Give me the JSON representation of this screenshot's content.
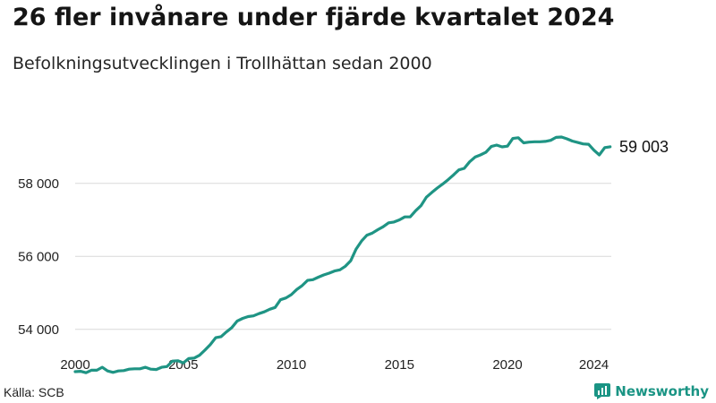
{
  "title": "26 fler invånare under fjärde kvartalet 2024",
  "subtitle": "Befolkningsutvecklingen i Trollhättan sedan 2000",
  "source": "Källa: SCB",
  "brand": {
    "name": "Newsworthy",
    "color": "#1a9484"
  },
  "chart_data": {
    "type": "line",
    "title": "26 fler invånare under fjärde kvartalet 2024",
    "subtitle": "Befolkningsutvecklingen i Trollhättan sedan 2000",
    "xlabel": "",
    "ylabel": "",
    "xlim": [
      2000,
      2024.75
    ],
    "ylim": [
      52700,
      59500
    ],
    "x_ticks": [
      2000,
      2005,
      2010,
      2015,
      2020,
      2024
    ],
    "x_tick_labels": [
      "2000",
      "2005",
      "2010",
      "2015",
      "2020",
      "2024"
    ],
    "y_ticks": [
      54000,
      56000,
      58000
    ],
    "y_tick_labels": [
      "54 000",
      "56 000",
      "58 000"
    ],
    "grid": "horizontal",
    "line_color": "#1f9484",
    "end_label": "59 003",
    "series": [
      {
        "x": [
          2000.0,
          2000.25,
          2000.5,
          2000.75,
          2001.0,
          2001.25,
          2001.5,
          2001.75,
          2002.0,
          2002.25,
          2002.5,
          2002.75,
          2003.0,
          2003.25,
          2003.5,
          2003.75,
          2004.0,
          2004.25,
          2004.5,
          2004.75,
          2005.0,
          2005.25,
          2005.5,
          2005.75,
          2006.0,
          2006.25,
          2006.5,
          2006.75,
          2007.0,
          2007.25,
          2007.5,
          2007.75,
          2008.0,
          2008.25,
          2008.5,
          2008.75,
          2009.0,
          2009.25,
          2009.5,
          2009.75,
          2010.0,
          2010.25,
          2010.5,
          2010.75,
          2011.0,
          2011.25,
          2011.5,
          2011.75,
          2012.0,
          2012.25,
          2012.5,
          2012.75,
          2013.0,
          2013.25,
          2013.5,
          2013.75,
          2014.0,
          2014.25,
          2014.5,
          2014.75,
          2015.0,
          2015.25,
          2015.5,
          2015.75,
          2016.0,
          2016.25,
          2016.5,
          2016.75,
          2017.0,
          2017.25,
          2017.5,
          2017.75,
          2018.0,
          2018.25,
          2018.5,
          2018.75,
          2019.0,
          2019.25,
          2019.5,
          2019.75,
          2020.0,
          2020.25,
          2020.5,
          2020.75,
          2021.0,
          2021.25,
          2021.5,
          2021.75,
          2022.0,
          2022.25,
          2022.5,
          2022.75,
          2023.0,
          2023.25,
          2023.5,
          2023.75,
          2024.0,
          2024.25,
          2024.5,
          2024.75
        ],
        "values": [
          52840,
          52850,
          52810,
          52880,
          52880,
          52960,
          52860,
          52820,
          52860,
          52870,
          52910,
          52920,
          52920,
          52960,
          52910,
          52900,
          52960,
          52980,
          53130,
          53140,
          53080,
          53200,
          53210,
          53290,
          53430,
          53580,
          53770,
          53800,
          53930,
          54050,
          54230,
          54300,
          54350,
          54370,
          54430,
          54480,
          54550,
          54600,
          54810,
          54860,
          54950,
          55090,
          55200,
          55340,
          55360,
          55430,
          55490,
          55540,
          55600,
          55630,
          55730,
          55880,
          56200,
          56420,
          56580,
          56640,
          56730,
          56810,
          56920,
          56940,
          57000,
          57080,
          57080,
          57250,
          57390,
          57620,
          57750,
          57870,
          57980,
          58100,
          58230,
          58370,
          58410,
          58590,
          58720,
          58780,
          58850,
          59010,
          59050,
          59000,
          59020,
          59230,
          59250,
          59110,
          59130,
          59140,
          59140,
          59150,
          59180,
          59260,
          59270,
          59220,
          59160,
          59120,
          59080,
          59070,
          58910,
          58780,
          58980,
          59003
        ]
      }
    ]
  }
}
